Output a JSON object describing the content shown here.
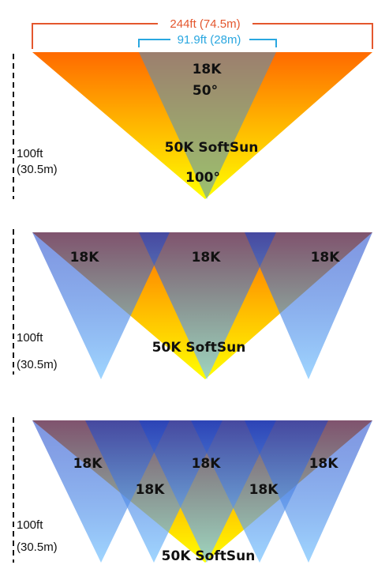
{
  "dimensions": {
    "wide_label": "244ft (74.5m)",
    "wide_color": "#e4572e",
    "narrow_label": "91.9ft (28m)",
    "narrow_color": "#2aa7e0"
  },
  "colors": {
    "softsun_top": "#ff7a00",
    "softsun_bottom": "#ffff00",
    "light_18k_top": "#1a3fbf",
    "light_18k_bottom": "#80c8ff",
    "distance_line": "#111111"
  },
  "panels": [
    {
      "height_label": "100ft",
      "height_metric": "(30.5m)",
      "softsun_label": "50K SoftSun",
      "softsun_angle": "100°",
      "light_name": "18K",
      "light_angle": "50°"
    },
    {
      "height_label": "100ft",
      "height_metric": "(30.5m)",
      "softsun_label": "50K SoftSun",
      "lights": [
        "18K",
        "18K",
        "18K"
      ]
    },
    {
      "height_label": "100ft",
      "height_metric": "(30.5m)",
      "softsun_label": "50K SoftSun",
      "lights_row1": [
        "18K",
        "18K",
        "18K"
      ],
      "lights_row2": [
        "18K",
        "18K"
      ]
    }
  ]
}
